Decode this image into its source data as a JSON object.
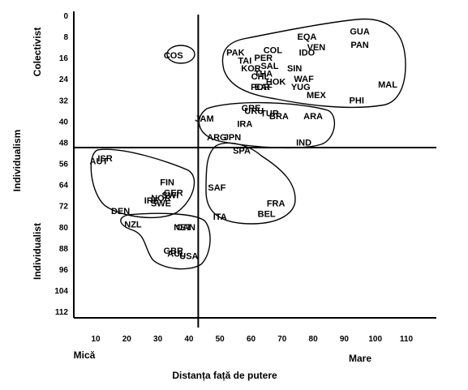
{
  "chart_data": {
    "type": "scatter",
    "xlabel": "Distanța față de putere",
    "ylabel": "Individualism",
    "x_low_label": "Mică",
    "x_high_label": "Mare",
    "y_low_label": "Colectivist",
    "y_high_label": "Individualist",
    "xlim": [
      10,
      110
    ],
    "ylim": [
      0,
      112
    ],
    "y_inverted": true,
    "x_ticks": [
      10,
      20,
      30,
      40,
      50,
      60,
      70,
      80,
      90,
      100,
      110
    ],
    "y_ticks": [
      0,
      8,
      16,
      24,
      32,
      40,
      48,
      56,
      64,
      72,
      80,
      88,
      96,
      104,
      112
    ],
    "divider_x": 43,
    "divider_y": 50,
    "grid": false,
    "legend": "none",
    "points": [
      {
        "label": "COS",
        "x": 35,
        "y": 15
      },
      {
        "label": "GUA",
        "x": 95,
        "y": 6
      },
      {
        "label": "PAN",
        "x": 95,
        "y": 11
      },
      {
        "label": "EQA",
        "x": 78,
        "y": 8
      },
      {
        "label": "VEN",
        "x": 81,
        "y": 12
      },
      {
        "label": "COL",
        "x": 67,
        "y": 13
      },
      {
        "label": "IDO",
        "x": 78,
        "y": 14
      },
      {
        "label": "PAK",
        "x": 55,
        "y": 14
      },
      {
        "label": "PER",
        "x": 64,
        "y": 16
      },
      {
        "label": "TAI",
        "x": 58,
        "y": 17
      },
      {
        "label": "SIN",
        "x": 74,
        "y": 20
      },
      {
        "label": "SAL",
        "x": 66,
        "y": 19
      },
      {
        "label": "KOR",
        "x": 60,
        "y": 20
      },
      {
        "label": "WAF",
        "x": 77,
        "y": 24
      },
      {
        "label": "THA",
        "x": 64,
        "y": 22
      },
      {
        "label": "CHL",
        "x": 63,
        "y": 23
      },
      {
        "label": "HOK",
        "x": 68,
        "y": 25
      },
      {
        "label": "MAL",
        "x": 104,
        "y": 26
      },
      {
        "label": "POR",
        "x": 63,
        "y": 27
      },
      {
        "label": "EAF",
        "x": 64,
        "y": 27
      },
      {
        "label": "YUG",
        "x": 76,
        "y": 27
      },
      {
        "label": "MEX",
        "x": 81,
        "y": 30
      },
      {
        "label": "PHI",
        "x": 94,
        "y": 32
      },
      {
        "label": "GRE",
        "x": 60,
        "y": 35
      },
      {
        "label": "JAM",
        "x": 45,
        "y": 39
      },
      {
        "label": "URU",
        "x": 61,
        "y": 36
      },
      {
        "label": "TUR",
        "x": 66,
        "y": 37
      },
      {
        "label": "BRA",
        "x": 69,
        "y": 38
      },
      {
        "label": "ARA",
        "x": 80,
        "y": 38
      },
      {
        "label": "IRA",
        "x": 58,
        "y": 41
      },
      {
        "label": "ARG",
        "x": 49,
        "y": 46
      },
      {
        "label": "JPN",
        "x": 54,
        "y": 46
      },
      {
        "label": "IND",
        "x": 77,
        "y": 48
      },
      {
        "label": "SPA",
        "x": 57,
        "y": 51
      },
      {
        "label": "ISR",
        "x": 13,
        "y": 54
      },
      {
        "label": "AUT",
        "x": 11,
        "y": 55
      },
      {
        "label": "FIN",
        "x": 33,
        "y": 63
      },
      {
        "label": "GER",
        "x": 35,
        "y": 67
      },
      {
        "label": "SAF",
        "x": 49,
        "y": 65
      },
      {
        "label": "FRA",
        "x": 68,
        "y": 71
      },
      {
        "label": "NOR",
        "x": 31,
        "y": 69
      },
      {
        "label": "IRE",
        "x": 28,
        "y": 70
      },
      {
        "label": "SWI",
        "x": 34,
        "y": 68
      },
      {
        "label": "DEN",
        "x": 18,
        "y": 74
      },
      {
        "label": "SWE",
        "x": 31,
        "y": 71
      },
      {
        "label": "ITA",
        "x": 50,
        "y": 76
      },
      {
        "label": "BEL",
        "x": 65,
        "y": 75
      },
      {
        "label": "NZL",
        "x": 22,
        "y": 79
      },
      {
        "label": "NET",
        "x": 38,
        "y": 80
      },
      {
        "label": "CAN",
        "x": 39,
        "y": 80
      },
      {
        "label": "GBR",
        "x": 35,
        "y": 89
      },
      {
        "label": "AUL",
        "x": 36,
        "y": 90
      },
      {
        "label": "USA",
        "x": 40,
        "y": 91
      }
    ]
  }
}
